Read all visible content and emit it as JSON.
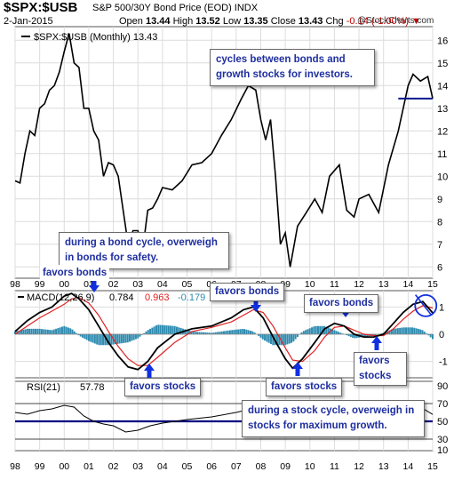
{
  "header": {
    "symbol": "$SPX:$USB",
    "name": "S&P 500/30Y Bond Price (EOD)",
    "exchange": "INDX",
    "date": "2-Jan-2015",
    "open_label": "Open",
    "open": "13.44",
    "high_label": "High",
    "high": "13.52",
    "low_label": "Low",
    "low": "13.35",
    "close_label": "Close",
    "close": "13.43",
    "chg_label": "Chg",
    "chg": "-0.14 (-1.00%)",
    "credit": "@StockCharts.com"
  },
  "colors": {
    "price": "#000000",
    "macd": "#000000",
    "signal": "#e02020",
    "histogram": "#2d8bb0",
    "annotation": "#1f2fa0",
    "arrow": "#1030e0",
    "rsi_line": "#000000",
    "rsi_refline": "#000080"
  },
  "chart_data": [
    {
      "type": "line",
      "legend": "$SPX:$USB (Monthly) 13.43",
      "x_tick_labels": [
        "98",
        "99",
        "00",
        "01",
        "02",
        "03",
        "04",
        "05",
        "06",
        "07",
        "08",
        "09",
        "10",
        "11",
        "12",
        "13",
        "14",
        "15"
      ],
      "ylim": [
        5.5,
        16.6
      ],
      "yticks": [
        6,
        7,
        8,
        9,
        10,
        11,
        12,
        13,
        14,
        15,
        16
      ],
      "x": [
        1998.0,
        1998.2,
        1998.4,
        1998.6,
        1998.8,
        1999.0,
        1999.2,
        1999.4,
        1999.6,
        1999.8,
        2000.0,
        2000.2,
        2000.4,
        2000.6,
        2000.8,
        2001.0,
        2001.2,
        2001.4,
        2001.6,
        2001.8,
        2002.0,
        2002.2,
        2002.4,
        2002.6,
        2002.8,
        2003.0,
        2003.2,
        2003.4,
        2003.6,
        2003.8,
        2004.0,
        2004.4,
        2004.8,
        2005.2,
        2005.6,
        2006.0,
        2006.4,
        2006.8,
        2007.2,
        2007.5,
        2007.8,
        2008.0,
        2008.2,
        2008.4,
        2008.6,
        2008.8,
        2009.0,
        2009.2,
        2009.5,
        2009.8,
        2010.2,
        2010.5,
        2010.8,
        2011.2,
        2011.5,
        2011.8,
        2012.0,
        2012.4,
        2012.8,
        2013.2,
        2013.6,
        2014.0,
        2014.2,
        2014.5,
        2014.8,
        2015.0
      ],
      "y": [
        9.8,
        9.7,
        11.0,
        12.0,
        11.8,
        13.0,
        13.2,
        13.8,
        14.0,
        14.6,
        15.5,
        16.3,
        15.0,
        14.8,
        13.0,
        13.0,
        12.0,
        11.6,
        10.0,
        10.6,
        10.5,
        10.0,
        8.5,
        7.0,
        7.6,
        7.6,
        6.8,
        8.5,
        8.6,
        9.0,
        9.5,
        9.4,
        9.8,
        10.5,
        10.6,
        11.0,
        11.8,
        12.5,
        13.4,
        14.0,
        13.8,
        12.5,
        11.6,
        12.5,
        10.0,
        7.0,
        7.5,
        6.0,
        7.8,
        8.3,
        9.0,
        8.4,
        10.0,
        10.5,
        8.5,
        8.2,
        9.0,
        9.2,
        8.4,
        10.5,
        12.0,
        14.0,
        14.5,
        14.2,
        14.4,
        13.43
      ],
      "reference_line": 13.43
    },
    {
      "type": "line",
      "legend": [
        "MACD(12,26,9)",
        "0.784",
        "0.963",
        "-0.179"
      ],
      "ylim": [
        -1.6,
        1.6
      ],
      "yticks": [
        -1,
        0,
        1
      ],
      "x": [
        1998.0,
        1998.5,
        1999.0,
        1999.5,
        2000.0,
        2000.3,
        2000.6,
        2001.0,
        2001.4,
        2001.8,
        2002.2,
        2002.6,
        2003.0,
        2003.4,
        2003.8,
        2004.5,
        2005.2,
        2006.0,
        2006.8,
        2007.3,
        2007.7,
        2008.1,
        2008.5,
        2009.0,
        2009.3,
        2009.7,
        2010.2,
        2010.6,
        2011.0,
        2011.4,
        2011.8,
        2012.2,
        2012.6,
        2013.0,
        2013.4,
        2013.8,
        2014.2,
        2014.6,
        2015.0
      ],
      "series": [
        {
          "name": "MACD(12,26,9)",
          "values": [
            0.1,
            0.5,
            0.8,
            1.0,
            1.4,
            1.5,
            1.3,
            0.9,
            0.3,
            -0.3,
            -0.8,
            -1.2,
            -1.3,
            -1.0,
            -0.5,
            0.0,
            0.2,
            0.3,
            0.6,
            0.9,
            1.0,
            0.6,
            -0.1,
            -0.9,
            -1.25,
            -0.9,
            -0.3,
            0.2,
            0.4,
            0.3,
            0.0,
            -0.1,
            -0.1,
            0.0,
            0.4,
            0.8,
            1.1,
            1.2,
            0.784
          ]
        },
        {
          "name": "Signal",
          "values": [
            0.0,
            0.3,
            0.6,
            0.85,
            1.1,
            1.3,
            1.35,
            1.15,
            0.7,
            0.1,
            -0.45,
            -0.9,
            -1.15,
            -1.15,
            -0.85,
            -0.3,
            0.1,
            0.25,
            0.45,
            0.7,
            0.9,
            0.8,
            0.3,
            -0.5,
            -0.95,
            -1.0,
            -0.6,
            -0.1,
            0.25,
            0.3,
            0.15,
            0.0,
            -0.05,
            -0.05,
            0.2,
            0.55,
            0.85,
            1.05,
            0.963
          ]
        },
        {
          "name": "Histogram",
          "values": [
            0.1,
            0.2,
            0.2,
            0.15,
            0.3,
            0.2,
            -0.05,
            -0.25,
            -0.4,
            -0.4,
            -0.35,
            -0.3,
            -0.15,
            0.15,
            0.35,
            0.3,
            0.1,
            0.05,
            0.15,
            0.2,
            0.1,
            -0.2,
            -0.4,
            -0.4,
            -0.3,
            0.1,
            0.3,
            0.3,
            0.15,
            0.0,
            -0.15,
            -0.1,
            -0.05,
            0.05,
            0.2,
            0.25,
            0.25,
            0.15,
            -0.179
          ]
        }
      ]
    },
    {
      "type": "line",
      "legend": [
        "RSI(21)",
        "57.78"
      ],
      "ylim": [
        17,
        95
      ],
      "yticks": [
        10,
        30,
        50,
        70,
        90
      ],
      "reference_lines": [
        70,
        50,
        30
      ],
      "x": [
        1998.0,
        1998.5,
        1999.0,
        1999.5,
        2000.0,
        2000.4,
        2000.8,
        2001.2,
        2001.6,
        2002.0,
        2002.5,
        2003.0,
        2003.5,
        2004.0,
        2005.0,
        2006.0,
        2007.0,
        2007.6,
        2008.0,
        2008.5,
        2008.9,
        2009.2,
        2009.6,
        2010.0,
        2010.5,
        2011.0,
        2011.5,
        2012.0,
        2012.5,
        2013.0,
        2013.5,
        2014.0,
        2014.5,
        2015.0
      ],
      "values": [
        60,
        58,
        62,
        64,
        68,
        66,
        56,
        50,
        47,
        45,
        38,
        40,
        45,
        48,
        52,
        55,
        60,
        64,
        62,
        52,
        40,
        33,
        45,
        52,
        50,
        56,
        52,
        46,
        48,
        52,
        62,
        68,
        66,
        57.78
      ]
    }
  ],
  "annotations": {
    "cycles": "cycles between bonds and growth stocks for investors.",
    "bond_cycle": "during a bond cycle, overweigh in bonds for safety.",
    "stock_cycle": "during a stock cycle, overweigh in stocks for maximum growth.",
    "favors_bonds": "favors bonds",
    "favors_stocks": "favors stocks"
  }
}
